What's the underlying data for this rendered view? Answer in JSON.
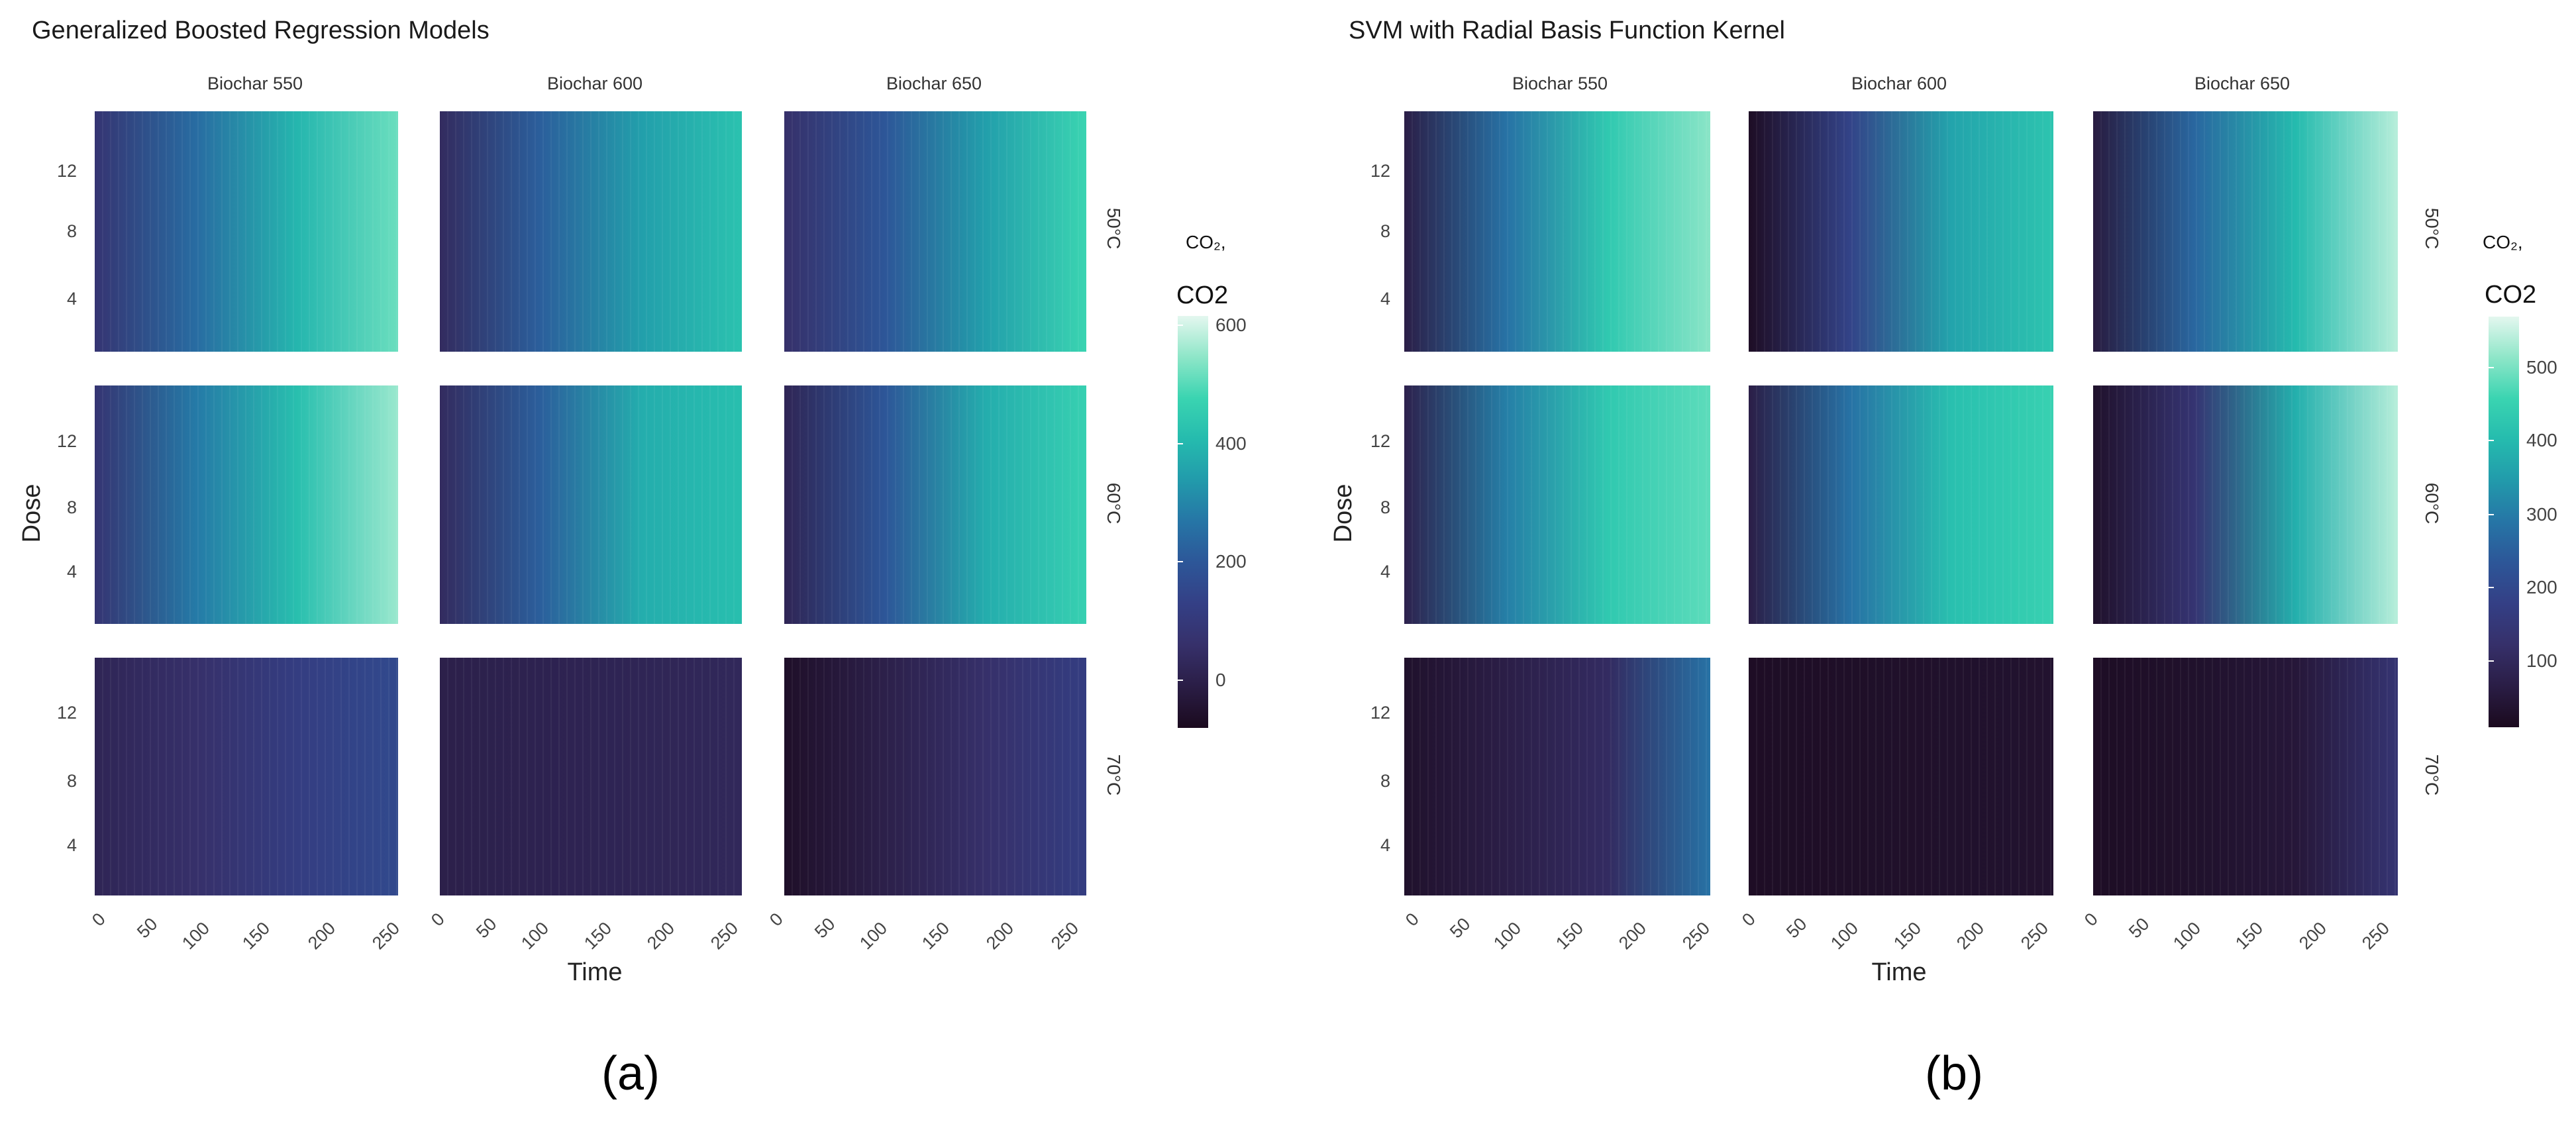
{
  "chart_data": [
    {
      "type": "heatmap",
      "title": "Generalized Boosted Regression Models",
      "subfigure_label": "(a)",
      "facet_cols": [
        "Biochar 550",
        "Biochar 600",
        "Biochar 650"
      ],
      "facet_rows": [
        "50°C",
        "60°C",
        "70°C"
      ],
      "xlabel": "Time",
      "ylabel": "Dose",
      "x_ticks": [
        0,
        50,
        100,
        150,
        200,
        250
      ],
      "y_ticks": [
        4,
        8,
        12
      ],
      "x_range": [
        0,
        240
      ],
      "y_range": [
        1,
        15
      ],
      "legend": {
        "title": "CO2",
        "subtitle": "CO₂,",
        "ticks": [
          600,
          400,
          200,
          0
        ],
        "range": [
          -80,
          620
        ],
        "position": "right"
      },
      "colors": {
        "stops": [
          "#1b0a1e",
          "#2a1d45",
          "#36306a",
          "#343f85",
          "#2d5698",
          "#2675a6",
          "#229aab",
          "#25bbae",
          "#3ad4b1",
          "#8ee6c8",
          "#e4f7ef"
        ]
      },
      "description_values": {
        "50°C": {
          "Biochar 550": [
            80,
            250,
            400,
            520
          ],
          "Biochar 600": [
            40,
            220,
            350,
            430
          ],
          "Biochar 650": [
            60,
            200,
            350,
            480
          ]
        },
        "60°C": {
          "Biochar 550": [
            80,
            280,
            420,
            560
          ],
          "Biochar 600": [
            40,
            220,
            380,
            420
          ],
          "Biochar 650": [
            20,
            200,
            380,
            470
          ]
        },
        "70°C": {
          "Biochar 550": [
            20,
            60,
            120,
            160
          ],
          "Biochar 600": [
            0,
            10,
            20,
            30
          ],
          "Biochar 650": [
            -60,
            0,
            60,
            120
          ]
        }
      }
    },
    {
      "type": "heatmap",
      "title": "SVM with Radial Basis Function Kernel",
      "subfigure_label": "(b)",
      "facet_cols": [
        "Biochar 550",
        "Biochar 600",
        "Biochar 650"
      ],
      "facet_rows": [
        "50°C",
        "60°C",
        "70°C"
      ],
      "xlabel": "Time",
      "ylabel": "Dose",
      "x_ticks": [
        0,
        50,
        100,
        150,
        200,
        250
      ],
      "y_ticks": [
        4,
        8,
        12
      ],
      "x_range": [
        0,
        240
      ],
      "y_range": [
        1,
        15
      ],
      "legend": {
        "title": "CO2",
        "subtitle": "CO₂,",
        "ticks": [
          500,
          400,
          300,
          200,
          100
        ],
        "range": [
          20,
          590
        ],
        "position": "right"
      },
      "colors": {
        "stops": [
          "#1b0a1e",
          "#2a1d45",
          "#36306a",
          "#343f85",
          "#2d5698",
          "#2675a6",
          "#229aab",
          "#25bbae",
          "#3ad4b1",
          "#8ee6c8",
          "#e4f7ef"
        ]
      },
      "description_values": {
        "50°C": {
          "Biochar 550": [
            80,
            300,
            450,
            530
          ],
          "Biochar 600": [
            30,
            200,
            380,
            440
          ],
          "Biochar 650": [
            70,
            280,
            420,
            560
          ]
        },
        "60°C": {
          "Biochar 550": [
            90,
            320,
            450,
            500
          ],
          "Biochar 600": [
            80,
            300,
            430,
            470
          ],
          "Biochar 650": [
            40,
            150,
            400,
            560
          ]
        },
        "70°C": {
          "Biochar 550": [
            40,
            80,
            120,
            300
          ],
          "Biochar 600": [
            30,
            35,
            40,
            45
          ],
          "Biochar 650": [
            30,
            40,
            60,
            150
          ]
        }
      }
    }
  ]
}
